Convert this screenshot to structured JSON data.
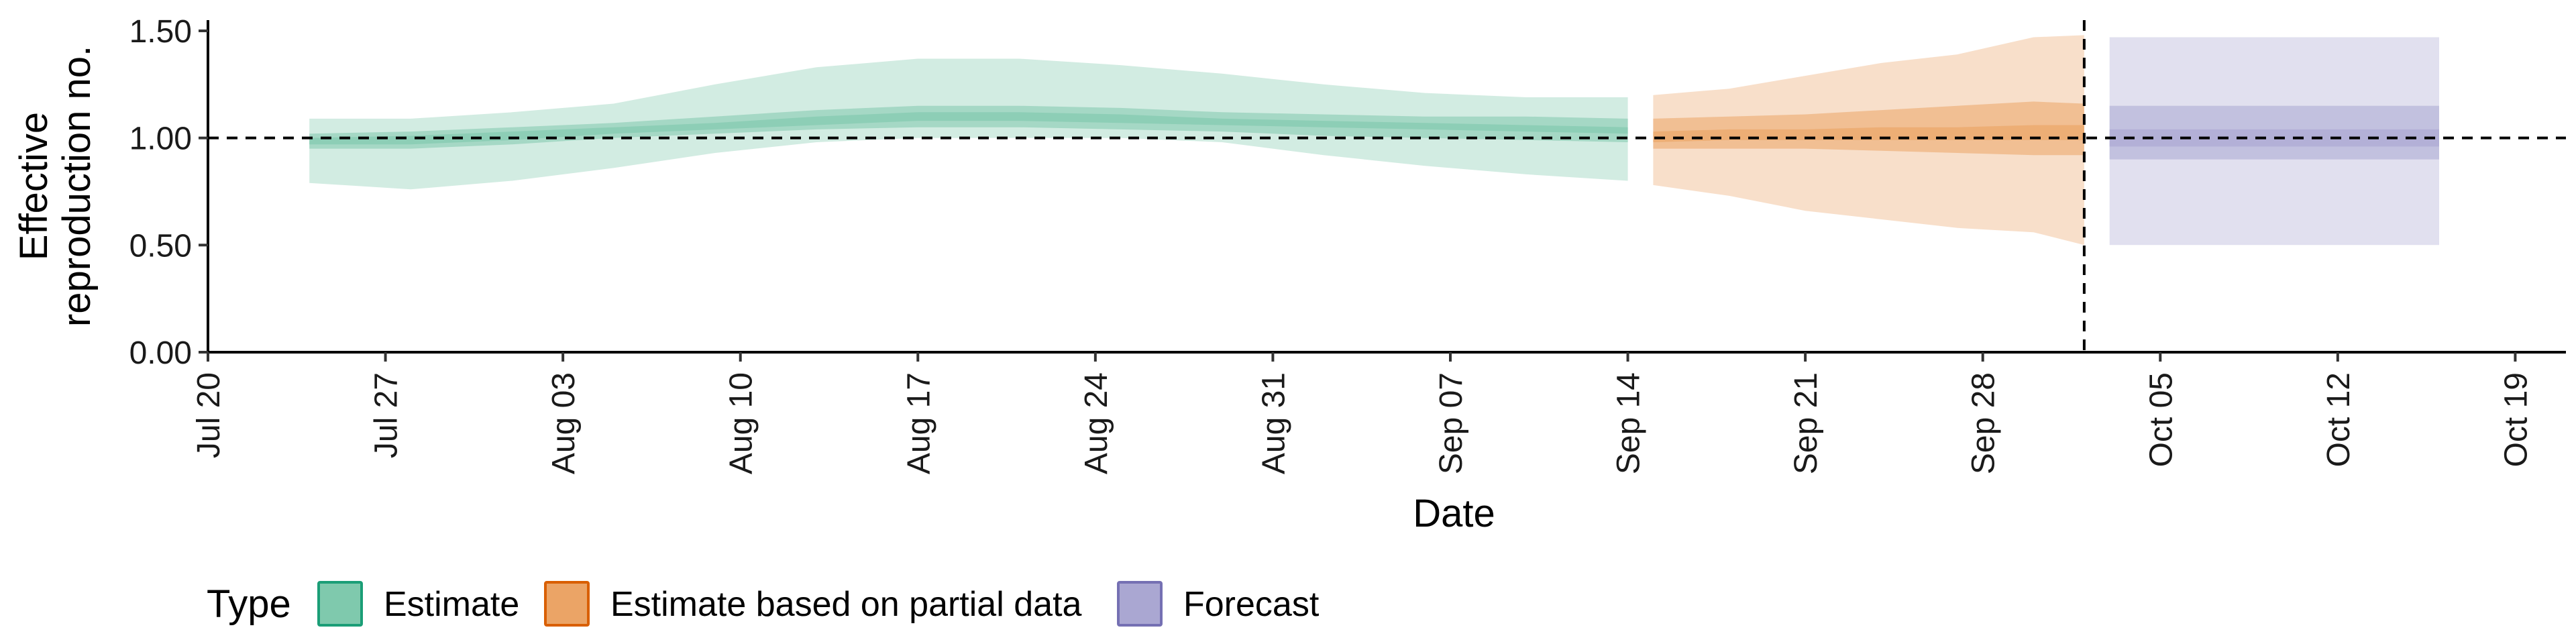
{
  "chart_data": {
    "type": "area",
    "xlabel": "Date",
    "ylabel": [
      "Effective",
      "reproduction no."
    ],
    "ylim": [
      0,
      1.55
    ],
    "y_ticks": [
      0.0,
      0.5,
      1.0,
      1.5
    ],
    "y_tick_labels": [
      "0.00",
      "0.50",
      "1.00",
      "1.50"
    ],
    "xlim": [
      "2020-07-20",
      "2020-10-21"
    ],
    "x_ticks": [
      "2020-07-20",
      "2020-07-27",
      "2020-08-03",
      "2020-08-10",
      "2020-08-17",
      "2020-08-24",
      "2020-08-31",
      "2020-09-07",
      "2020-09-14",
      "2020-09-21",
      "2020-09-28",
      "2020-10-05",
      "2020-10-12",
      "2020-10-19"
    ],
    "x_tick_labels": [
      "Jul 20",
      "Jul 27",
      "Aug 03",
      "Aug 10",
      "Aug 17",
      "Aug 24",
      "Aug 31",
      "Sep 07",
      "Sep 14",
      "Sep 21",
      "Sep 28",
      "Oct 05",
      "Oct 12",
      "Oct 19"
    ],
    "reference_hline": 1.0,
    "reference_vline": "2020-10-02",
    "legend_title": "Type",
    "legend_position": "bottom",
    "grid": false,
    "series": [
      {
        "name": "Estimate",
        "color": "#1b9e77",
        "fill": "#7fc9ad",
        "x": [
          "2020-07-24",
          "2020-07-28",
          "2020-08-01",
          "2020-08-05",
          "2020-08-09",
          "2020-08-13",
          "2020-08-17",
          "2020-08-21",
          "2020-08-25",
          "2020-08-29",
          "2020-09-02",
          "2020-09-06",
          "2020-09-10",
          "2020-09-14"
        ],
        "lower_90": [
          0.79,
          0.76,
          0.8,
          0.86,
          0.93,
          0.98,
          1.0,
          1.0,
          1.0,
          0.98,
          0.92,
          0.87,
          0.83,
          0.8
        ],
        "lower_50": [
          0.95,
          0.95,
          0.97,
          1.0,
          1.02,
          1.04,
          1.05,
          1.05,
          1.04,
          1.03,
          1.01,
          1.0,
          0.99,
          0.98
        ],
        "lower_20": [
          0.97,
          0.97,
          0.99,
          1.02,
          1.04,
          1.06,
          1.08,
          1.08,
          1.07,
          1.06,
          1.05,
          1.04,
          1.03,
          1.02
        ],
        "upper_20": [
          1.0,
          1.01,
          1.03,
          1.05,
          1.07,
          1.1,
          1.12,
          1.12,
          1.11,
          1.09,
          1.08,
          1.07,
          1.06,
          1.05
        ],
        "upper_50": [
          1.02,
          1.03,
          1.05,
          1.07,
          1.1,
          1.13,
          1.15,
          1.15,
          1.14,
          1.12,
          1.11,
          1.1,
          1.1,
          1.09
        ],
        "upper_90": [
          1.09,
          1.09,
          1.12,
          1.16,
          1.25,
          1.33,
          1.37,
          1.37,
          1.34,
          1.3,
          1.25,
          1.21,
          1.19,
          1.19
        ]
      },
      {
        "name": "Estimate based on partial data",
        "color": "#d95f02",
        "fill": "#eba466",
        "x": [
          "2020-09-15",
          "2020-09-18",
          "2020-09-21",
          "2020-09-24",
          "2020-09-27",
          "2020-09-30",
          "2020-10-02"
        ],
        "lower_90": [
          0.78,
          0.73,
          0.66,
          0.62,
          0.58,
          0.56,
          0.5
        ],
        "lower_50": [
          0.95,
          0.95,
          0.95,
          0.94,
          0.93,
          0.92,
          0.92
        ],
        "lower_20": [
          0.98,
          0.99,
          0.99,
          0.99,
          0.99,
          0.99,
          0.99
        ],
        "upper_20": [
          1.03,
          1.04,
          1.04,
          1.05,
          1.05,
          1.06,
          1.06
        ],
        "upper_50": [
          1.09,
          1.1,
          1.11,
          1.13,
          1.15,
          1.17,
          1.16
        ],
        "upper_90": [
          1.2,
          1.23,
          1.29,
          1.35,
          1.39,
          1.47,
          1.48
        ]
      },
      {
        "name": "Forecast",
        "color": "#7570b3",
        "fill": "#aaa7d2",
        "x": [
          "2020-10-03",
          "2020-10-16"
        ],
        "lower_90": [
          0.5,
          0.5
        ],
        "lower_50": [
          0.9,
          0.9
        ],
        "lower_20": [
          0.96,
          0.96
        ],
        "upper_20": [
          1.04,
          1.04
        ],
        "upper_50": [
          1.15,
          1.15
        ],
        "upper_90": [
          1.47,
          1.47
        ]
      }
    ]
  }
}
